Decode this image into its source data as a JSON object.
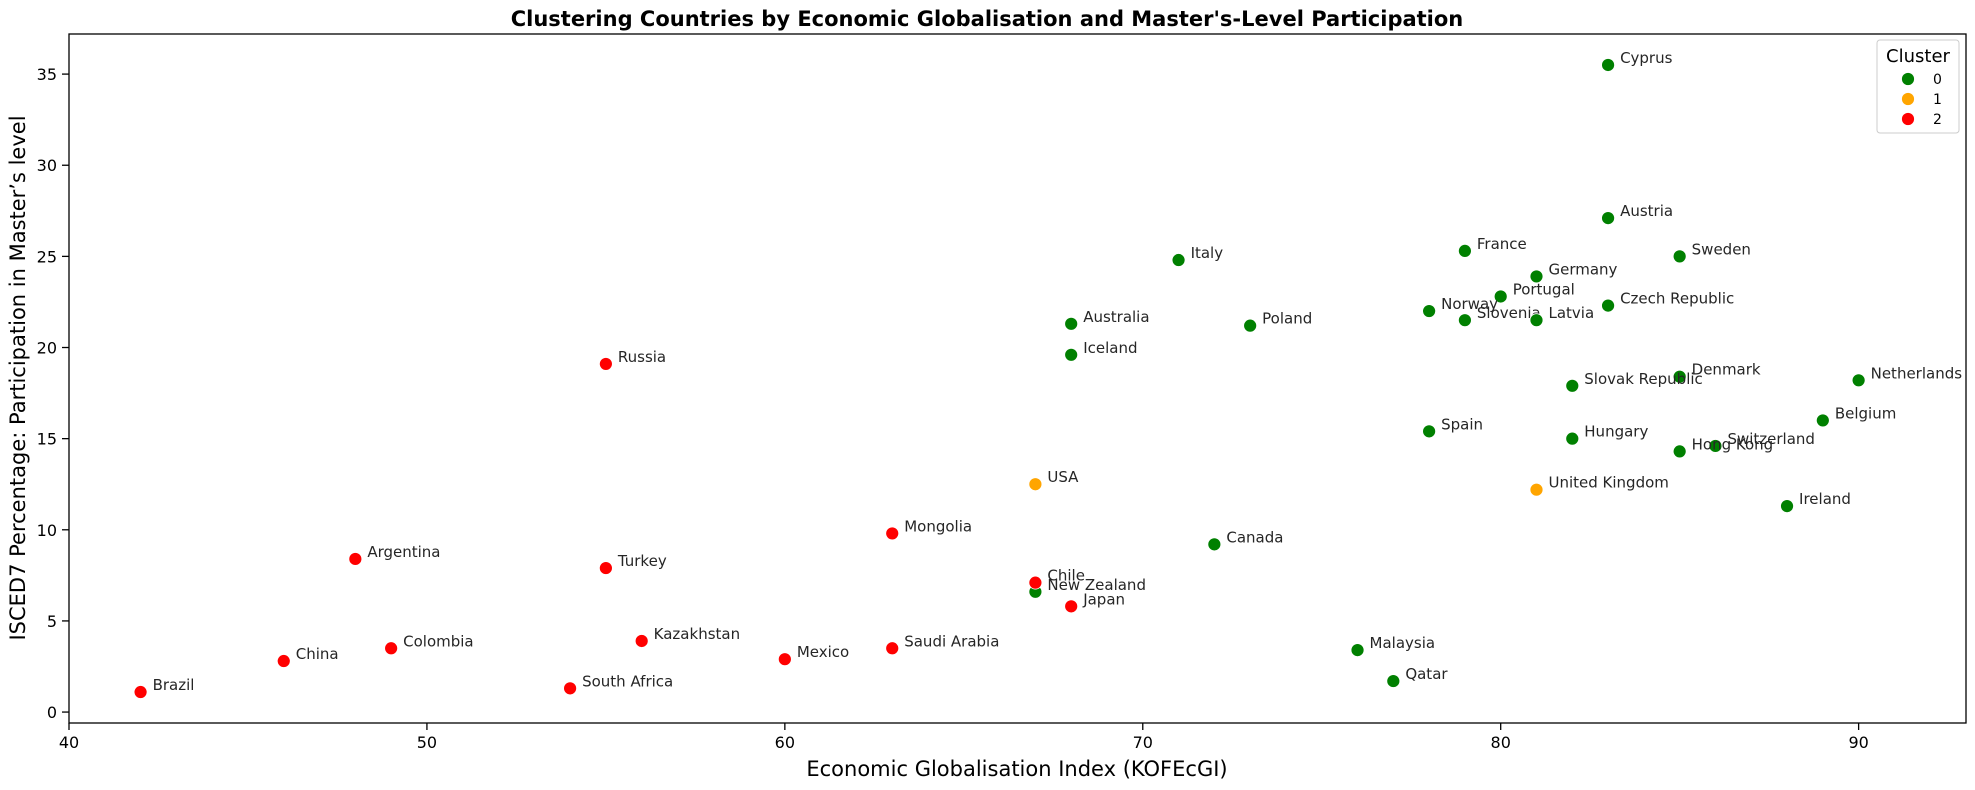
{
  "chart_data": {
    "type": "scatter",
    "title": "Clustering Countries by Economic Globalisation and Master's-Level Participation",
    "xlabel": "Economic Globalisation Index (KOFEcGI)",
    "ylabel": "ISCED7 Percentage: Participation in Master’s level",
    "xlim": [
      40,
      93
    ],
    "ylim": [
      -0.6,
      37.2
    ],
    "x_ticks": [
      40,
      50,
      60,
      70,
      80,
      90
    ],
    "y_ticks": [
      0,
      5,
      10,
      15,
      20,
      25,
      30,
      35
    ],
    "grid": false,
    "legend": {
      "title": "Cluster",
      "placement": "top-right",
      "entries": [
        {
          "label": "0",
          "color": "#008000"
        },
        {
          "label": "1",
          "color": "#FFA500"
        },
        {
          "label": "2",
          "color": "#FF0000"
        }
      ]
    },
    "points": [
      {
        "label": "Cyprus",
        "x": 83,
        "y": 35.5,
        "cluster": 0
      },
      {
        "label": "Austria",
        "x": 83,
        "y": 27.1,
        "cluster": 0
      },
      {
        "label": "France",
        "x": 79,
        "y": 25.3,
        "cluster": 0
      },
      {
        "label": "Sweden",
        "x": 85,
        "y": 25.0,
        "cluster": 0
      },
      {
        "label": "Italy",
        "x": 71,
        "y": 24.8,
        "cluster": 0
      },
      {
        "label": "Germany",
        "x": 81,
        "y": 23.9,
        "cluster": 0
      },
      {
        "label": "Portugal",
        "x": 80,
        "y": 22.8,
        "cluster": 0
      },
      {
        "label": "Czech Republic",
        "x": 83,
        "y": 22.3,
        "cluster": 0
      },
      {
        "label": "Norway",
        "x": 78,
        "y": 22.0,
        "cluster": 0
      },
      {
        "label": "Slovenia",
        "x": 79,
        "y": 21.5,
        "cluster": 0
      },
      {
        "label": "Latvia",
        "x": 81,
        "y": 21.5,
        "cluster": 0
      },
      {
        "label": "Australia",
        "x": 68,
        "y": 21.3,
        "cluster": 0
      },
      {
        "label": "Poland",
        "x": 73,
        "y": 21.2,
        "cluster": 0
      },
      {
        "label": "Iceland",
        "x": 68,
        "y": 19.6,
        "cluster": 0
      },
      {
        "label": "Denmark",
        "x": 85,
        "y": 18.4,
        "cluster": 0
      },
      {
        "label": "Netherlands",
        "x": 90,
        "y": 18.2,
        "cluster": 0
      },
      {
        "label": "Slovak Republic",
        "x": 82,
        "y": 17.9,
        "cluster": 0
      },
      {
        "label": "Belgium",
        "x": 89,
        "y": 16.0,
        "cluster": 0
      },
      {
        "label": "Spain",
        "x": 78,
        "y": 15.4,
        "cluster": 0
      },
      {
        "label": "Hungary",
        "x": 82,
        "y": 15.0,
        "cluster": 0
      },
      {
        "label": "Switzerland",
        "x": 86,
        "y": 14.6,
        "cluster": 0
      },
      {
        "label": "Hong Kong",
        "x": 85,
        "y": 14.3,
        "cluster": 0
      },
      {
        "label": "Ireland",
        "x": 88,
        "y": 11.3,
        "cluster": 0
      },
      {
        "label": "Canada",
        "x": 72,
        "y": 9.2,
        "cluster": 0
      },
      {
        "label": "New Zealand",
        "x": 67,
        "y": 6.6,
        "cluster": 0
      },
      {
        "label": "Malaysia",
        "x": 76,
        "y": 3.4,
        "cluster": 0
      },
      {
        "label": "Qatar",
        "x": 77,
        "y": 1.7,
        "cluster": 0
      },
      {
        "label": "USA",
        "x": 67,
        "y": 12.5,
        "cluster": 1
      },
      {
        "label": "United Kingdom",
        "x": 81,
        "y": 12.2,
        "cluster": 1
      },
      {
        "label": "Russia",
        "x": 55,
        "y": 19.1,
        "cluster": 2
      },
      {
        "label": "Mongolia",
        "x": 63,
        "y": 9.8,
        "cluster": 2
      },
      {
        "label": "Argentina",
        "x": 48,
        "y": 8.4,
        "cluster": 2
      },
      {
        "label": "Turkey",
        "x": 55,
        "y": 7.9,
        "cluster": 2
      },
      {
        "label": "Chile",
        "x": 67,
        "y": 7.1,
        "cluster": 2
      },
      {
        "label": "Japan",
        "x": 68,
        "y": 5.8,
        "cluster": 2
      },
      {
        "label": "Kazakhstan",
        "x": 56,
        "y": 3.9,
        "cluster": 2
      },
      {
        "label": "Colombia",
        "x": 49,
        "y": 3.5,
        "cluster": 2
      },
      {
        "label": "Saudi Arabia",
        "x": 63,
        "y": 3.5,
        "cluster": 2
      },
      {
        "label": "Mexico",
        "x": 60,
        "y": 2.9,
        "cluster": 2
      },
      {
        "label": "China",
        "x": 46,
        "y": 2.8,
        "cluster": 2
      },
      {
        "label": "South Africa",
        "x": 54,
        "y": 1.3,
        "cluster": 2
      },
      {
        "label": "Brazil",
        "x": 42,
        "y": 1.1,
        "cluster": 2
      }
    ]
  }
}
